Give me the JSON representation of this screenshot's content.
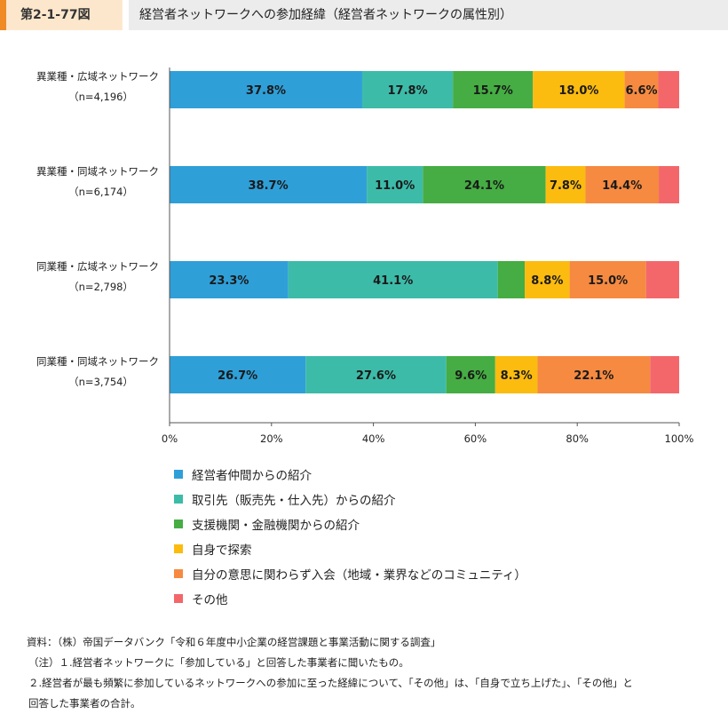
{
  "figure_number": "第2-1-77図",
  "figure_title": "経営者ネットワークへの参加経緯（経営者ネットワークの属性別）",
  "notes": {
    "source": "資料：（株）帝国データバンク「令和６年度中小企業の経営課題と事業活動に関する調査」",
    "note1": "（注）１.経営者ネットワークに「参加している」と回答した事業者に聞いたもの。",
    "note2_line1": "２.経営者が最も頻繁に参加しているネットワークへの参加に至った経緯について、「その他」は、「自身で立ち上げた」、「その他」と",
    "note2_line2": "回答した事業者の合計。"
  },
  "chart_data": {
    "type": "bar",
    "orientation": "horizontal",
    "stacked": true,
    "percent_stacked": true,
    "xlim": [
      0,
      100
    ],
    "xticks": [
      "0%",
      "20%",
      "40%",
      "60%",
      "80%",
      "100%"
    ],
    "grid": false,
    "legend_position": "bottom",
    "categories": [
      {
        "name": "異業種・広域ネットワーク",
        "n": "（n=4,196）"
      },
      {
        "name": "異業種・同域ネットワーク",
        "n": "（n=6,174）"
      },
      {
        "name": "同業種・広域ネットワーク",
        "n": "（n=2,798）"
      },
      {
        "name": "同業種・同域ネットワーク",
        "n": "（n=3,754）"
      }
    ],
    "series": [
      {
        "name": "経営者仲間からの紹介",
        "color": "#2f9fd8",
        "values": [
          37.8,
          38.7,
          23.3,
          26.7
        ],
        "labels": [
          "37.8%",
          "38.7%",
          "23.3%",
          "26.7%"
        ]
      },
      {
        "name": "取引先（販売先・仕入先）からの紹介",
        "color": "#3dbba9",
        "values": [
          17.8,
          11.0,
          41.1,
          27.6
        ],
        "labels": [
          "17.8%",
          "11.0%",
          "41.1%",
          "27.6%"
        ]
      },
      {
        "name": "支援機関・金融機関からの紹介",
        "color": "#45ad43",
        "values": [
          15.7,
          24.1,
          5.3,
          9.6
        ],
        "labels": [
          "15.7%",
          "24.1%",
          "",
          "9.6%"
        ]
      },
      {
        "name": "自身で探索",
        "color": "#fcbb0f",
        "values": [
          18.0,
          7.8,
          8.8,
          8.3
        ],
        "labels": [
          "18.0%",
          "7.8%",
          "8.8%",
          "8.3%"
        ]
      },
      {
        "name": "自分の意思に関わらず入会（地域・業界などのコミュニティ）",
        "color": "#f68a41",
        "values": [
          6.6,
          14.4,
          15.0,
          22.1
        ],
        "labels": [
          "6.6%",
          "14.4%",
          "15.0%",
          "22.1%"
        ]
      },
      {
        "name": "その他",
        "color": "#f3676a",
        "values": [
          4.1,
          4.0,
          6.5,
          5.7
        ],
        "labels": [
          "",
          "",
          "",
          ""
        ]
      }
    ]
  }
}
